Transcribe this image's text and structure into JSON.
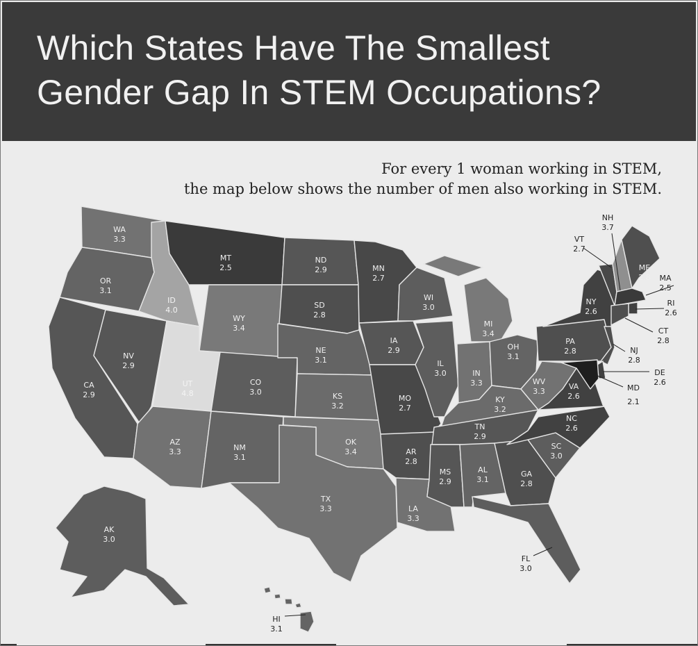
{
  "header": {
    "title_line1": "Which States Have The Smallest",
    "title_line2": "Gender Gap In STEM Occupations?"
  },
  "subtitle": {
    "line1": "For every 1 woman working in STEM,",
    "line2": "the map below shows the number of men also working in STEM."
  },
  "map": {
    "scale": {
      "min": 2.1,
      "max": 4.8,
      "dark": "#1e1e1e",
      "light": "#dcdcdc"
    },
    "states": [
      {
        "abbr": "WA",
        "value": "3.3"
      },
      {
        "abbr": "OR",
        "value": "3.1"
      },
      {
        "abbr": "CA",
        "value": "2.9"
      },
      {
        "abbr": "NV",
        "value": "2.9"
      },
      {
        "abbr": "ID",
        "value": "4.0"
      },
      {
        "abbr": "MT",
        "value": "2.5"
      },
      {
        "abbr": "WY",
        "value": "3.4"
      },
      {
        "abbr": "UT",
        "value": "4.8"
      },
      {
        "abbr": "CO",
        "value": "3.0"
      },
      {
        "abbr": "AZ",
        "value": "3.3"
      },
      {
        "abbr": "NM",
        "value": "3.1"
      },
      {
        "abbr": "ND",
        "value": "2.9"
      },
      {
        "abbr": "SD",
        "value": "2.8"
      },
      {
        "abbr": "NE",
        "value": "3.1"
      },
      {
        "abbr": "KS",
        "value": "3.2"
      },
      {
        "abbr": "OK",
        "value": "3.4"
      },
      {
        "abbr": "TX",
        "value": "3.3"
      },
      {
        "abbr": "MN",
        "value": "2.7"
      },
      {
        "abbr": "IA",
        "value": "2.9"
      },
      {
        "abbr": "MO",
        "value": "2.7"
      },
      {
        "abbr": "AR",
        "value": "2.8"
      },
      {
        "abbr": "LA",
        "value": "3.3"
      },
      {
        "abbr": "WI",
        "value": "3.0"
      },
      {
        "abbr": "IL",
        "value": "3.0"
      },
      {
        "abbr": "MI",
        "value": "3.4"
      },
      {
        "abbr": "IN",
        "value": "3.3"
      },
      {
        "abbr": "OH",
        "value": "3.1"
      },
      {
        "abbr": "KY",
        "value": "3.2"
      },
      {
        "abbr": "TN",
        "value": "2.9"
      },
      {
        "abbr": "MS",
        "value": "2.9"
      },
      {
        "abbr": "AL",
        "value": "3.1"
      },
      {
        "abbr": "GA",
        "value": "2.8"
      },
      {
        "abbr": "FL",
        "value": "3.0"
      },
      {
        "abbr": "SC",
        "value": "3.0"
      },
      {
        "abbr": "NC",
        "value": "2.6"
      },
      {
        "abbr": "VA",
        "value": "2.6"
      },
      {
        "abbr": "WV",
        "value": "3.3"
      },
      {
        "abbr": "PA",
        "value": "2.8"
      },
      {
        "abbr": "NY",
        "value": "2.6"
      },
      {
        "abbr": "VT",
        "value": "2.7"
      },
      {
        "abbr": "NH",
        "value": "3.7"
      },
      {
        "abbr": "ME",
        "value": "2.8"
      },
      {
        "abbr": "MA",
        "value": "2.5"
      },
      {
        "abbr": "RI",
        "value": "2.6"
      },
      {
        "abbr": "CT",
        "value": "2.8"
      },
      {
        "abbr": "NJ",
        "value": "2.8"
      },
      {
        "abbr": "DE",
        "value": "2.6"
      },
      {
        "abbr": "MD",
        "value": "2.1"
      },
      {
        "abbr": "AK",
        "value": "3.0"
      },
      {
        "abbr": "HI",
        "value": "3.1"
      }
    ]
  }
}
